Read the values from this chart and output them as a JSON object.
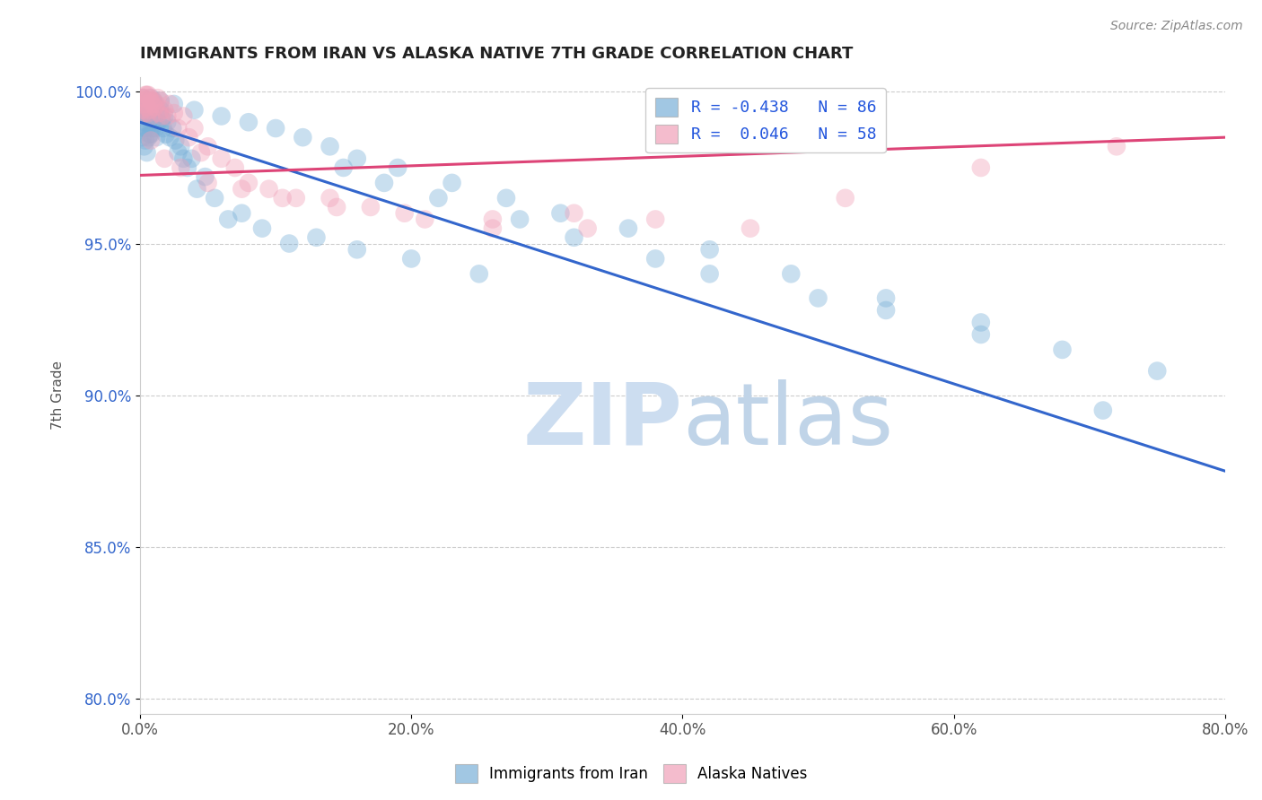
{
  "title": "IMMIGRANTS FROM IRAN VS ALASKA NATIVE 7TH GRADE CORRELATION CHART",
  "source_text": "Source: ZipAtlas.com",
  "ylabel_text": "7th Grade",
  "xlim": [
    0.0,
    0.8
  ],
  "ylim": [
    0.795,
    1.005
  ],
  "xtick_labels": [
    "0.0%",
    "20.0%",
    "40.0%",
    "60.0%",
    "80.0%"
  ],
  "xtick_positions": [
    0.0,
    0.2,
    0.4,
    0.6,
    0.8
  ],
  "ytick_labels": [
    "80.0%",
    "85.0%",
    "90.0%",
    "95.0%",
    "100.0%"
  ],
  "ytick_positions": [
    0.8,
    0.85,
    0.9,
    0.95,
    1.0
  ],
  "blue_scatter_x": [
    0.001,
    0.002,
    0.002,
    0.003,
    0.003,
    0.003,
    0.004,
    0.004,
    0.004,
    0.005,
    0.005,
    0.005,
    0.006,
    0.006,
    0.007,
    0.007,
    0.007,
    0.008,
    0.008,
    0.009,
    0.009,
    0.01,
    0.01,
    0.011,
    0.011,
    0.012,
    0.012,
    0.013,
    0.014,
    0.015,
    0.016,
    0.017,
    0.018,
    0.019,
    0.02,
    0.022,
    0.024,
    0.026,
    0.028,
    0.03,
    0.032,
    0.035,
    0.038,
    0.042,
    0.048,
    0.055,
    0.065,
    0.075,
    0.09,
    0.11,
    0.13,
    0.16,
    0.2,
    0.25,
    0.15,
    0.18,
    0.22,
    0.28,
    0.32,
    0.38,
    0.42,
    0.5,
    0.55,
    0.62,
    0.68,
    0.75,
    0.008,
    0.015,
    0.025,
    0.04,
    0.06,
    0.08,
    0.1,
    0.12,
    0.14,
    0.16,
    0.19,
    0.23,
    0.27,
    0.31,
    0.36,
    0.42,
    0.48,
    0.55,
    0.62,
    0.71
  ],
  "blue_scatter_y": [
    0.99,
    0.985,
    0.998,
    0.992,
    0.988,
    0.982,
    0.996,
    0.99,
    0.984,
    0.995,
    0.988,
    0.98,
    0.993,
    0.985,
    0.997,
    0.992,
    0.986,
    0.994,
    0.986,
    0.996,
    0.988,
    0.997,
    0.991,
    0.996,
    0.988,
    0.995,
    0.985,
    0.99,
    0.993,
    0.994,
    0.991,
    0.988,
    0.992,
    0.986,
    0.99,
    0.985,
    0.988,
    0.984,
    0.98,
    0.982,
    0.978,
    0.975,
    0.978,
    0.968,
    0.972,
    0.965,
    0.958,
    0.96,
    0.955,
    0.95,
    0.952,
    0.948,
    0.945,
    0.94,
    0.975,
    0.97,
    0.965,
    0.958,
    0.952,
    0.945,
    0.94,
    0.932,
    0.928,
    0.92,
    0.915,
    0.908,
    0.998,
    0.997,
    0.996,
    0.994,
    0.992,
    0.99,
    0.988,
    0.985,
    0.982,
    0.978,
    0.975,
    0.97,
    0.965,
    0.96,
    0.955,
    0.948,
    0.94,
    0.932,
    0.924,
    0.895
  ],
  "pink_scatter_x": [
    0.001,
    0.002,
    0.002,
    0.003,
    0.003,
    0.004,
    0.004,
    0.005,
    0.005,
    0.006,
    0.006,
    0.007,
    0.007,
    0.008,
    0.008,
    0.009,
    0.01,
    0.011,
    0.012,
    0.013,
    0.014,
    0.015,
    0.016,
    0.018,
    0.02,
    0.022,
    0.025,
    0.028,
    0.032,
    0.036,
    0.04,
    0.045,
    0.05,
    0.06,
    0.07,
    0.08,
    0.095,
    0.115,
    0.14,
    0.17,
    0.21,
    0.26,
    0.32,
    0.38,
    0.45,
    0.52,
    0.62,
    0.72,
    0.008,
    0.018,
    0.03,
    0.05,
    0.075,
    0.105,
    0.145,
    0.195,
    0.26,
    0.33
  ],
  "pink_scatter_y": [
    0.997,
    0.998,
    0.994,
    0.998,
    0.993,
    0.999,
    0.996,
    0.999,
    0.995,
    0.999,
    0.993,
    0.998,
    0.994,
    0.997,
    0.992,
    0.996,
    0.997,
    0.995,
    0.996,
    0.998,
    0.993,
    0.997,
    0.992,
    0.994,
    0.992,
    0.996,
    0.993,
    0.988,
    0.992,
    0.985,
    0.988,
    0.98,
    0.982,
    0.978,
    0.975,
    0.97,
    0.968,
    0.965,
    0.965,
    0.962,
    0.958,
    0.955,
    0.96,
    0.958,
    0.955,
    0.965,
    0.975,
    0.982,
    0.984,
    0.978,
    0.975,
    0.97,
    0.968,
    0.965,
    0.962,
    0.96,
    0.958,
    0.955
  ],
  "blue_line_x": [
    0.0,
    0.8
  ],
  "blue_line_y": [
    0.99,
    0.875
  ],
  "pink_line_x": [
    0.0,
    0.8
  ],
  "pink_line_y": [
    0.9725,
    0.985
  ],
  "blue_color": "#7ab0d8",
  "pink_color": "#f0a0b8",
  "blue_line_color": "#3366cc",
  "pink_line_color": "#dd4477",
  "watermark_zip_color": "#ccddf0",
  "watermark_atlas_color": "#c0d4e8",
  "background_color": "#ffffff",
  "grid_color": "#cccccc",
  "title_color": "#222222",
  "axis_label_color": "#555555",
  "ytick_color": "#3366cc",
  "source_color": "#888888",
  "legend_blue_r": "R = -0.438",
  "legend_blue_n": "N = 86",
  "legend_pink_r": "R =  0.046",
  "legend_pink_n": "N = 58",
  "bottom_legend_blue": "Immigrants from Iran",
  "bottom_legend_pink": "Alaska Natives"
}
